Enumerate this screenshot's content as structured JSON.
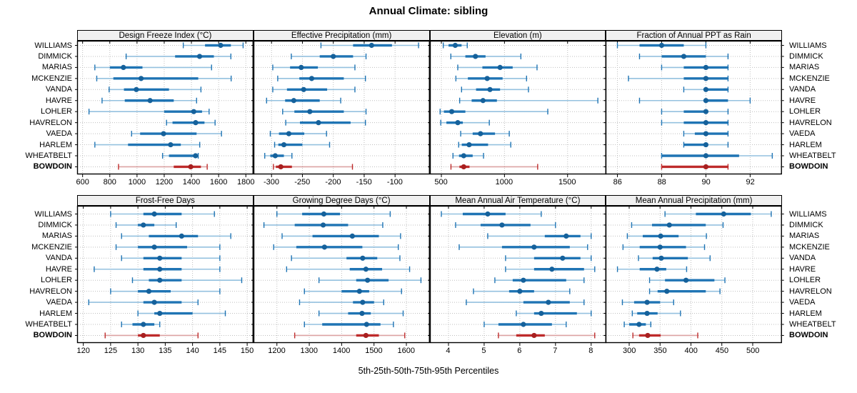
{
  "title": "Annual Climate: sibling",
  "caption": "5th-25th-50th-75th-95th Percentiles",
  "percentile_labels": [
    "5th",
    "25th",
    "50th",
    "75th",
    "95th"
  ],
  "sites": [
    "WILLIAMS",
    "DIMMICK",
    "MARIAS",
    "MCKENZIE",
    "VANDA",
    "HAVRE",
    "LOHLER",
    "HAVRELON",
    "VAEDA",
    "HARLEM",
    "WHEATBELT",
    "BOWDOIN"
  ],
  "highlight_site": "BOWDOIN",
  "colors": {
    "blue": "#1F74B4",
    "blue_dot": "#15619B",
    "blue_light": "#94C1DF",
    "red": "#BE2B2B",
    "red_dot": "#A81F1F",
    "red_light": "#DCA3A3",
    "grid": "#BFBFBF",
    "strip_bg": "#F0F0F0",
    "panel_border": "#000000",
    "text": "#000000"
  },
  "chart_data": {
    "type": "dotplot",
    "title": "Annual Climate: sibling",
    "note": "Each row shows 5th-25th-50th-75th-95th percentile intervals per site; BOWDOIN highlighted in red",
    "legend_position": "none",
    "grid": "dotted",
    "panels": [
      {
        "label": "Design Freeze Index (°C)",
        "ticks": [
          600,
          800,
          1000,
          1200,
          1400,
          1600,
          1800
        ],
        "xlim": [
          565,
          1850
        ],
        "values": [
          [
            1340,
            1500,
            1615,
            1690,
            1780
          ],
          [
            920,
            1280,
            1460,
            1565,
            1690
          ],
          [
            690,
            800,
            900,
            1040,
            1548
          ],
          [
            704,
            826,
            1030,
            1450,
            1692
          ],
          [
            795,
            904,
            995,
            1235,
            1470
          ],
          [
            743,
            910,
            1096,
            1270,
            1438
          ],
          [
            647,
            1200,
            1417,
            1478,
            1530
          ],
          [
            1217,
            1261,
            1431,
            1496,
            1574
          ],
          [
            960,
            1023,
            1195,
            1438,
            1621
          ],
          [
            690,
            934,
            1247,
            1322,
            1461
          ],
          [
            1188,
            1235,
            1430,
            1442,
            1450
          ],
          [
            864,
            1270,
            1395,
            1470,
            1516
          ]
        ]
      },
      {
        "label": "Effective Precipitation (mm)",
        "ticks": [
          -300,
          -250,
          -200,
          -150,
          -100
        ],
        "xlim": [
          -328,
          -45
        ],
        "values": [
          [
            -220,
            -168,
            -138,
            -105,
            -62
          ],
          [
            -268,
            -222,
            -200,
            -168,
            -147
          ],
          [
            -298,
            -270,
            -252,
            -225,
            -165
          ],
          [
            -290,
            -255,
            -235,
            -183,
            -148
          ],
          [
            -298,
            -275,
            -248,
            -210,
            -165
          ],
          [
            -308,
            -278,
            -264,
            -222,
            -188
          ],
          [
            -282,
            -263,
            -238,
            -183,
            -147
          ],
          [
            -277,
            -254,
            -224,
            -172,
            -148
          ],
          [
            -302,
            -288,
            -272,
            -247,
            -211
          ],
          [
            -295,
            -289,
            -280,
            -250,
            -206
          ],
          [
            -311,
            -302,
            -294,
            -280,
            -267
          ],
          [
            -297,
            -293,
            -285,
            -267,
            -169
          ]
        ]
      },
      {
        "label": "Elevation (m)",
        "ticks": [
          500,
          1000,
          1500
        ],
        "xlim": [
          415,
          1800
        ],
        "values": [
          [
            515,
            557,
            610,
            660,
            705
          ],
          [
            575,
            690,
            770,
            850,
            1130
          ],
          [
            630,
            825,
            965,
            1065,
            1258
          ],
          [
            615,
            710,
            863,
            985,
            1175
          ],
          [
            660,
            775,
            885,
            965,
            1190
          ],
          [
            645,
            740,
            830,
            940,
            1740
          ],
          [
            490,
            520,
            582,
            690,
            1343
          ],
          [
            495,
            540,
            630,
            670,
            880
          ],
          [
            653,
            748,
            810,
            925,
            1038
          ],
          [
            637,
            662,
            720,
            870,
            1050
          ],
          [
            592,
            640,
            677,
            748,
            834
          ],
          [
            576,
            643,
            677,
            723,
            1263
          ]
        ]
      },
      {
        "label": "Fraction of Annual PPT as Rain",
        "ticks": [
          86,
          88,
          90,
          92
        ],
        "xlim": [
          85.5,
          93.4
        ],
        "values": [
          [
            86,
            87,
            88,
            89,
            90
          ],
          [
            87,
            88,
            89,
            90,
            91
          ],
          [
            88,
            89,
            90,
            91,
            91
          ],
          [
            86.5,
            89,
            90,
            91,
            91
          ],
          [
            89,
            90,
            90,
            91,
            91
          ],
          [
            87,
            90,
            90,
            91,
            92
          ],
          [
            88,
            89,
            90,
            90,
            91
          ],
          [
            88,
            89,
            90,
            91,
            91
          ],
          [
            89,
            89.5,
            90,
            91,
            91
          ],
          [
            89,
            89,
            90,
            90,
            91
          ],
          [
            88,
            88,
            90,
            91.5,
            93
          ],
          [
            88,
            88,
            90,
            91,
            91
          ]
        ]
      },
      {
        "label": "Frost-Free Days",
        "ticks": [
          120,
          125,
          130,
          135,
          140,
          145,
          150
        ],
        "xlim": [
          119,
          151
        ],
        "values": [
          [
            125,
            131,
            133,
            138,
            144
          ],
          [
            126,
            130,
            131,
            133,
            137
          ],
          [
            127,
            132,
            138,
            141,
            147
          ],
          [
            126,
            130,
            133,
            139,
            145
          ],
          [
            127,
            131,
            134,
            138,
            145
          ],
          [
            122,
            131,
            134,
            138,
            145
          ],
          [
            129,
            132,
            134,
            138,
            149
          ],
          [
            125,
            130,
            132,
            136,
            145
          ],
          [
            121,
            131,
            133,
            138,
            141
          ],
          [
            130,
            133,
            134,
            140,
            146
          ],
          [
            127,
            129,
            131,
            133,
            134
          ],
          [
            124,
            130,
            131,
            134,
            141
          ]
        ]
      },
      {
        "label": "Growing Degree Days (°C)",
        "ticks": [
          1200,
          1300,
          1400,
          1500,
          1600
        ],
        "xlim": [
          1130,
          1670
        ],
        "values": [
          [
            1200,
            1278,
            1345,
            1395,
            1550
          ],
          [
            1160,
            1255,
            1343,
            1420,
            1527
          ],
          [
            1216,
            1310,
            1433,
            1515,
            1582
          ],
          [
            1190,
            1260,
            1347,
            1464,
            1575
          ],
          [
            1245,
            1415,
            1465,
            1510,
            1580
          ],
          [
            1230,
            1425,
            1475,
            1525,
            1610
          ],
          [
            1330,
            1445,
            1480,
            1545,
            1645
          ],
          [
            1285,
            1400,
            1455,
            1485,
            1585
          ],
          [
            1270,
            1435,
            1465,
            1500,
            1530
          ],
          [
            1330,
            1420,
            1463,
            1490,
            1590
          ],
          [
            1285,
            1340,
            1477,
            1520,
            1560
          ],
          [
            1255,
            1445,
            1475,
            1515,
            1595
          ]
        ]
      },
      {
        "label": "Mean Annual Air Temperature (°C)",
        "ticks": [
          4,
          5,
          6,
          7,
          8
        ],
        "xlim": [
          3.5,
          8.4
        ],
        "values": [
          [
            3.8,
            4.4,
            5.1,
            5.6,
            6.6
          ],
          [
            4.2,
            4.9,
            5.5,
            6.3,
            7.0
          ],
          [
            5.1,
            6.7,
            7.3,
            7.7,
            8.0
          ],
          [
            4.3,
            5.5,
            6.4,
            7.4,
            7.9
          ],
          [
            5.6,
            6.4,
            7.2,
            7.7,
            8.0
          ],
          [
            5.6,
            6.4,
            6.9,
            7.8,
            8.1
          ],
          [
            5.3,
            5.8,
            6.1,
            7.3,
            7.8
          ],
          [
            4.7,
            5.7,
            6.0,
            6.4,
            7.4
          ],
          [
            4.5,
            6.1,
            6.8,
            7.4,
            7.8
          ],
          [
            5.9,
            6.4,
            6.6,
            7.6,
            8.0
          ],
          [
            5.0,
            5.4,
            6.1,
            6.9,
            7.3
          ],
          [
            5.4,
            5.9,
            6.4,
            6.7,
            8.1
          ]
        ]
      },
      {
        "label": "Mean Annual Precipitation (mm)",
        "ticks": [
          300,
          350,
          400,
          450,
          500
        ],
        "xlim": [
          263,
          546
        ],
        "values": [
          [
            358,
            408,
            453,
            497,
            530
          ],
          [
            304,
            337,
            365,
            424,
            452
          ],
          [
            297,
            322,
            351,
            380,
            425
          ],
          [
            290,
            317,
            350,
            392,
            422
          ],
          [
            315,
            338,
            352,
            395,
            431
          ],
          [
            281,
            317,
            345,
            360,
            393
          ],
          [
            333,
            358,
            392,
            438,
            455
          ],
          [
            333,
            346,
            361,
            424,
            447
          ],
          [
            289,
            308,
            329,
            350,
            372
          ],
          [
            305,
            313,
            329,
            346,
            383
          ],
          [
            292,
            300,
            316,
            327,
            335
          ],
          [
            306,
            316,
            330,
            351,
            411
          ]
        ]
      }
    ]
  }
}
